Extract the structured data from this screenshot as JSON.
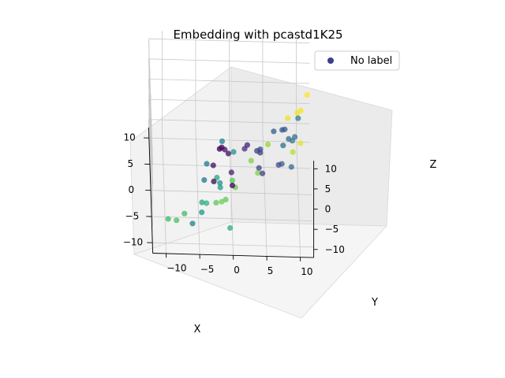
{
  "chart_data": {
    "type": "scatter3d",
    "title": "Embedding with pcastd1K25",
    "xlabel": "X",
    "ylabel": "Y",
    "zlabel": "Z",
    "xlim": [
      -12,
      12
    ],
    "ylim": [
      -12,
      12
    ],
    "zlim": [
      -12,
      12
    ],
    "x_ticks": [
      -10,
      -5,
      0,
      5,
      10
    ],
    "y_ticks": [
      -10,
      -5,
      0,
      5,
      10
    ],
    "z_ticks": [
      -10,
      -5,
      0,
      5,
      10
    ],
    "x_tick_labels": [
      "−10",
      "−5",
      "0",
      "5",
      "10"
    ],
    "y_tick_labels": [
      "−10",
      "−5",
      "0",
      "5",
      "10"
    ],
    "z_tick_labels": [
      "−10",
      "−5",
      "0",
      "5",
      "10"
    ],
    "grid": true,
    "colormap": "viridis",
    "legend": {
      "placement": "top-right",
      "entries": [
        {
          "label": "No label",
          "color": "#3b3f8c"
        }
      ]
    },
    "series": [
      {
        "name": "No label",
        "points": [
          [
            -9.2,
            -6.0,
            -8.0,
            0.45
          ],
          [
            -8.4,
            -4.6,
            -6.2,
            0.55
          ],
          [
            -7.0,
            -4.2,
            0.0,
            0.4
          ],
          [
            -6.2,
            -3.8,
            3.0,
            0.42
          ],
          [
            -5.6,
            -1.5,
            7.9,
            0.45
          ],
          [
            -6.1,
            0.2,
            6.0,
            0.5
          ],
          [
            -7.1,
            -1.8,
            -1.6,
            0.55
          ],
          [
            -9.9,
            -4.6,
            -1.8,
            0.6
          ],
          [
            -8.4,
            -3.9,
            -3.9,
            0.65
          ],
          [
            -9.5,
            -7.2,
            -5.2,
            0.7
          ],
          [
            -9.9,
            -8.4,
            -6.4,
            0.72
          ],
          [
            -8.6,
            -9.6,
            -7.8,
            0.7
          ],
          [
            -6.1,
            -2.4,
            -6.7,
            0.75
          ],
          [
            -6.9,
            -1.6,
            -5.4,
            0.78
          ],
          [
            -9.1,
            -0.4,
            -9.0,
            0.6
          ],
          [
            -8.4,
            -1.9,
            1.2,
            0.5
          ],
          [
            -2.9,
            -1.8,
            2.5,
            0.0
          ],
          [
            -3.3,
            -1.5,
            3.4,
            0.02
          ],
          [
            -2.9,
            -0.5,
            1.4,
            0.05
          ],
          [
            -1.7,
            -1.0,
            0.8,
            0.08
          ],
          [
            -5.0,
            -2.8,
            1.1,
            0.05
          ],
          [
            -5.4,
            -0.1,
            0.0,
            0.1
          ],
          [
            -4.6,
            -2.7,
            -3.4,
            0.04
          ],
          [
            -0.1,
            2.4,
            0.0,
            0.12
          ],
          [
            -0.2,
            2.0,
            -0.8,
            0.15
          ],
          [
            -1.8,
            4.1,
            -3.4,
            0.2
          ],
          [
            -2.5,
            4.6,
            -3.8,
            0.18
          ],
          [
            2.7,
            4.4,
            -4.6,
            0.25
          ],
          [
            2.9,
            4.4,
            -5.7,
            0.2
          ],
          [
            1.8,
            7.6,
            -6.9,
            0.3
          ],
          [
            0.8,
            9.0,
            -6.3,
            0.32
          ],
          [
            3.9,
            7.7,
            -1.2,
            0.28
          ],
          [
            2.5,
            6.4,
            0.2,
            0.3
          ],
          [
            1.6,
            8.6,
            -0.4,
            0.35
          ],
          [
            0.7,
            9.5,
            1.3,
            0.34
          ],
          [
            0.8,
            10.0,
            5.8,
            0.4
          ],
          [
            -0.5,
            9.1,
            1.9,
            0.38
          ],
          [
            4.4,
            8.1,
            -1.7,
            0.3
          ],
          [
            1.2,
            7.1,
            -6.4,
            0.22
          ],
          [
            -2.8,
            0.1,
            -6.6,
            0.02
          ],
          [
            4.2,
            9.3,
            -7.0,
            0.9
          ],
          [
            3.3,
            10.4,
            -3.6,
            0.96
          ],
          [
            5.6,
            10.0,
            0.9,
            0.98
          ],
          [
            6.3,
            11.5,
            4.5,
            1.0
          ],
          [
            5.3,
            10.5,
            1.9,
            0.99
          ],
          [
            6.4,
            8.6,
            -1.5,
            0.97
          ],
          [
            5.3,
            5.6,
            -6.7,
            0.85
          ],
          [
            4.8,
            3.1,
            -10.2,
            0.82
          ],
          [
            -0.3,
            0.6,
            -10.3,
            0.78
          ],
          [
            -3.6,
            -0.9,
            -9.1,
            0.76
          ],
          [
            -2.4,
            0.1,
            -5.9,
            0.74
          ],
          [
            0.8,
            4.0,
            -8.0,
            0.8
          ],
          [
            -3.0,
            -2.2,
            -4.5,
            0.62
          ],
          [
            2.1,
            7.8,
            -2.7,
            0.36
          ],
          [
            -1.4,
            3.8,
            0.3,
            0.2
          ]
        ]
      }
    ]
  }
}
